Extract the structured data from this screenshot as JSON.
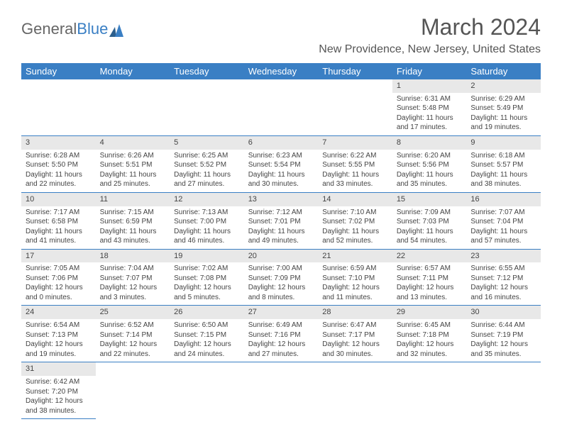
{
  "logo": {
    "part1": "General",
    "part2": "Blue"
  },
  "title": "March 2024",
  "location": "New Providence, New Jersey, United States",
  "colors": {
    "header_bg": "#3a7fc4",
    "header_text": "#ffffff",
    "day_num_bg": "#e8e8e8",
    "text": "#444444",
    "border": "#3a7fc4"
  },
  "weekdays": [
    "Sunday",
    "Monday",
    "Tuesday",
    "Wednesday",
    "Thursday",
    "Friday",
    "Saturday"
  ],
  "weeks": [
    [
      null,
      null,
      null,
      null,
      null,
      {
        "num": "1",
        "sunrise": "Sunrise: 6:31 AM",
        "sunset": "Sunset: 5:48 PM",
        "daylight": "Daylight: 11 hours and 17 minutes."
      },
      {
        "num": "2",
        "sunrise": "Sunrise: 6:29 AM",
        "sunset": "Sunset: 5:49 PM",
        "daylight": "Daylight: 11 hours and 19 minutes."
      }
    ],
    [
      {
        "num": "3",
        "sunrise": "Sunrise: 6:28 AM",
        "sunset": "Sunset: 5:50 PM",
        "daylight": "Daylight: 11 hours and 22 minutes."
      },
      {
        "num": "4",
        "sunrise": "Sunrise: 6:26 AM",
        "sunset": "Sunset: 5:51 PM",
        "daylight": "Daylight: 11 hours and 25 minutes."
      },
      {
        "num": "5",
        "sunrise": "Sunrise: 6:25 AM",
        "sunset": "Sunset: 5:52 PM",
        "daylight": "Daylight: 11 hours and 27 minutes."
      },
      {
        "num": "6",
        "sunrise": "Sunrise: 6:23 AM",
        "sunset": "Sunset: 5:54 PM",
        "daylight": "Daylight: 11 hours and 30 minutes."
      },
      {
        "num": "7",
        "sunrise": "Sunrise: 6:22 AM",
        "sunset": "Sunset: 5:55 PM",
        "daylight": "Daylight: 11 hours and 33 minutes."
      },
      {
        "num": "8",
        "sunrise": "Sunrise: 6:20 AM",
        "sunset": "Sunset: 5:56 PM",
        "daylight": "Daylight: 11 hours and 35 minutes."
      },
      {
        "num": "9",
        "sunrise": "Sunrise: 6:18 AM",
        "sunset": "Sunset: 5:57 PM",
        "daylight": "Daylight: 11 hours and 38 minutes."
      }
    ],
    [
      {
        "num": "10",
        "sunrise": "Sunrise: 7:17 AM",
        "sunset": "Sunset: 6:58 PM",
        "daylight": "Daylight: 11 hours and 41 minutes."
      },
      {
        "num": "11",
        "sunrise": "Sunrise: 7:15 AM",
        "sunset": "Sunset: 6:59 PM",
        "daylight": "Daylight: 11 hours and 43 minutes."
      },
      {
        "num": "12",
        "sunrise": "Sunrise: 7:13 AM",
        "sunset": "Sunset: 7:00 PM",
        "daylight": "Daylight: 11 hours and 46 minutes."
      },
      {
        "num": "13",
        "sunrise": "Sunrise: 7:12 AM",
        "sunset": "Sunset: 7:01 PM",
        "daylight": "Daylight: 11 hours and 49 minutes."
      },
      {
        "num": "14",
        "sunrise": "Sunrise: 7:10 AM",
        "sunset": "Sunset: 7:02 PM",
        "daylight": "Daylight: 11 hours and 52 minutes."
      },
      {
        "num": "15",
        "sunrise": "Sunrise: 7:09 AM",
        "sunset": "Sunset: 7:03 PM",
        "daylight": "Daylight: 11 hours and 54 minutes."
      },
      {
        "num": "16",
        "sunrise": "Sunrise: 7:07 AM",
        "sunset": "Sunset: 7:04 PM",
        "daylight": "Daylight: 11 hours and 57 minutes."
      }
    ],
    [
      {
        "num": "17",
        "sunrise": "Sunrise: 7:05 AM",
        "sunset": "Sunset: 7:06 PM",
        "daylight": "Daylight: 12 hours and 0 minutes."
      },
      {
        "num": "18",
        "sunrise": "Sunrise: 7:04 AM",
        "sunset": "Sunset: 7:07 PM",
        "daylight": "Daylight: 12 hours and 3 minutes."
      },
      {
        "num": "19",
        "sunrise": "Sunrise: 7:02 AM",
        "sunset": "Sunset: 7:08 PM",
        "daylight": "Daylight: 12 hours and 5 minutes."
      },
      {
        "num": "20",
        "sunrise": "Sunrise: 7:00 AM",
        "sunset": "Sunset: 7:09 PM",
        "daylight": "Daylight: 12 hours and 8 minutes."
      },
      {
        "num": "21",
        "sunrise": "Sunrise: 6:59 AM",
        "sunset": "Sunset: 7:10 PM",
        "daylight": "Daylight: 12 hours and 11 minutes."
      },
      {
        "num": "22",
        "sunrise": "Sunrise: 6:57 AM",
        "sunset": "Sunset: 7:11 PM",
        "daylight": "Daylight: 12 hours and 13 minutes."
      },
      {
        "num": "23",
        "sunrise": "Sunrise: 6:55 AM",
        "sunset": "Sunset: 7:12 PM",
        "daylight": "Daylight: 12 hours and 16 minutes."
      }
    ],
    [
      {
        "num": "24",
        "sunrise": "Sunrise: 6:54 AM",
        "sunset": "Sunset: 7:13 PM",
        "daylight": "Daylight: 12 hours and 19 minutes."
      },
      {
        "num": "25",
        "sunrise": "Sunrise: 6:52 AM",
        "sunset": "Sunset: 7:14 PM",
        "daylight": "Daylight: 12 hours and 22 minutes."
      },
      {
        "num": "26",
        "sunrise": "Sunrise: 6:50 AM",
        "sunset": "Sunset: 7:15 PM",
        "daylight": "Daylight: 12 hours and 24 minutes."
      },
      {
        "num": "27",
        "sunrise": "Sunrise: 6:49 AM",
        "sunset": "Sunset: 7:16 PM",
        "daylight": "Daylight: 12 hours and 27 minutes."
      },
      {
        "num": "28",
        "sunrise": "Sunrise: 6:47 AM",
        "sunset": "Sunset: 7:17 PM",
        "daylight": "Daylight: 12 hours and 30 minutes."
      },
      {
        "num": "29",
        "sunrise": "Sunrise: 6:45 AM",
        "sunset": "Sunset: 7:18 PM",
        "daylight": "Daylight: 12 hours and 32 minutes."
      },
      {
        "num": "30",
        "sunrise": "Sunrise: 6:44 AM",
        "sunset": "Sunset: 7:19 PM",
        "daylight": "Daylight: 12 hours and 35 minutes."
      }
    ],
    [
      {
        "num": "31",
        "sunrise": "Sunrise: 6:42 AM",
        "sunset": "Sunset: 7:20 PM",
        "daylight": "Daylight: 12 hours and 38 minutes."
      },
      null,
      null,
      null,
      null,
      null,
      null
    ]
  ]
}
